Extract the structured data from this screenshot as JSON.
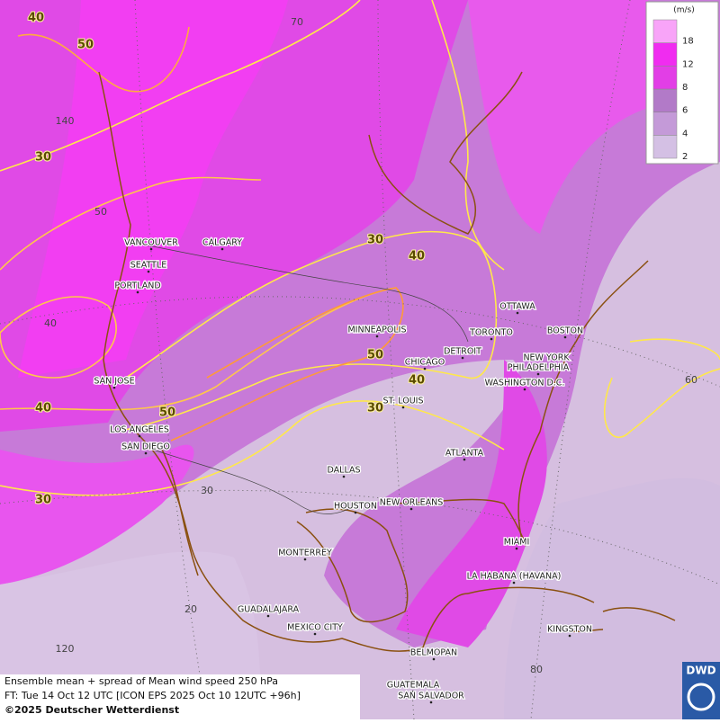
{
  "legend": {
    "unit": "(m/s)",
    "levels": [
      2,
      4,
      6,
      8,
      12,
      18
    ]
  },
  "contour_labels": [
    40,
    50,
    30,
    30,
    40,
    50,
    40,
    30,
    40,
    50,
    30
  ],
  "grid_labels": [
    70,
    140,
    50,
    40,
    60,
    30,
    20,
    120,
    80
  ],
  "cities": [
    "VANCOUVER",
    "CALGARY",
    "SEATTLE",
    "PORTLAND",
    "MINNEAPOLIS",
    "OTTAWA",
    "TORONTO",
    "BOSTON",
    "DETROIT",
    "NEW YORK",
    "PHILADELPHIA",
    "CHICAGO",
    "WASHINGTON D.C.",
    "SAN JOSE",
    "ST. LOUIS",
    "LOS ANGELES",
    "SAN DIEGO",
    "ATLANTA",
    "DALLAS",
    "HOUSTON",
    "NEW ORLEANS",
    "MIAMI",
    "MONTERREY",
    "LA HABANA (HAVANA)",
    "GUADALAJARA",
    "MEXICO CITY",
    "KINGSTON",
    "BELMOPAN",
    "GUATEMALA",
    "SAN SALVADOR"
  ],
  "footer": {
    "title": "Ensemble mean + spread of Mean wind speed 250 hPa",
    "forecast": "FT: Tue 14 Oct 12 UTC [ICON EPS 2025 Oct 10 12UTC +96h]",
    "copyright": "©2025 Deutscher Wetterdienst",
    "logo": "DWD"
  }
}
